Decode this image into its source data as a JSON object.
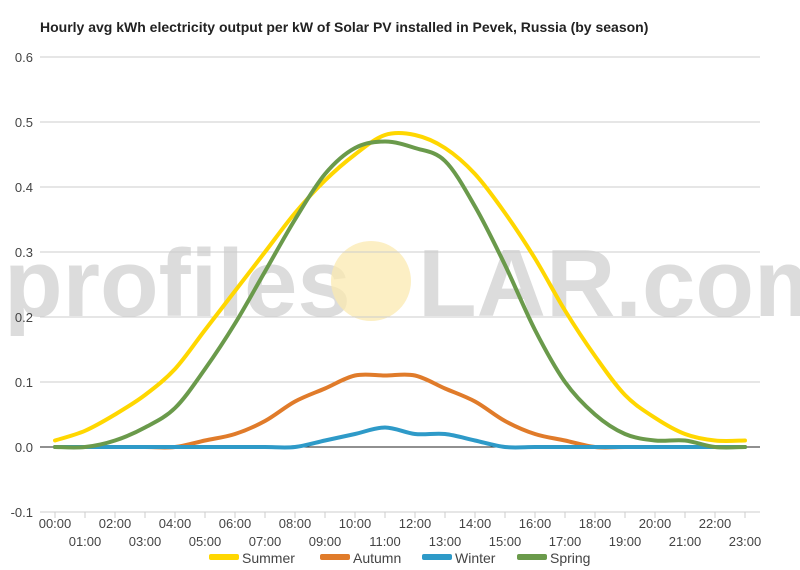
{
  "watermark": {
    "left": "profiles",
    "right": "LAR.com",
    "sun_color": "#fbe9b0"
  },
  "chart_data": {
    "type": "line",
    "title": "Hourly avg kWh electricity output per kW of Solar PV installed in Pevek, Russia (by season)",
    "xlabel": "",
    "ylabel": "",
    "ylim": [
      -0.1,
      0.6
    ],
    "yticks": [
      "-0.1",
      "0.0",
      "0.1",
      "0.2",
      "0.3",
      "0.4",
      "0.5",
      "0.6"
    ],
    "grid": true,
    "legend": "bottom",
    "x": [
      "00:00",
      "01:00",
      "02:00",
      "03:00",
      "04:00",
      "05:00",
      "06:00",
      "07:00",
      "08:00",
      "09:00",
      "10:00",
      "11:00",
      "12:00",
      "13:00",
      "14:00",
      "15:00",
      "16:00",
      "17:00",
      "18:00",
      "19:00",
      "20:00",
      "21:00",
      "22:00",
      "23:00"
    ],
    "series": [
      {
        "name": "Summer",
        "color": "#ffd700",
        "values": [
          0.01,
          0.025,
          0.05,
          0.08,
          0.12,
          0.18,
          0.24,
          0.3,
          0.36,
          0.41,
          0.45,
          0.48,
          0.48,
          0.46,
          0.42,
          0.36,
          0.29,
          0.21,
          0.14,
          0.08,
          0.045,
          0.02,
          0.01,
          0.01
        ]
      },
      {
        "name": "Autumn",
        "color": "#e07b2a",
        "values": [
          0,
          0,
          0,
          0,
          0,
          0.01,
          0.02,
          0.04,
          0.07,
          0.09,
          0.11,
          0.11,
          0.11,
          0.09,
          0.07,
          0.04,
          0.02,
          0.01,
          0,
          0,
          0,
          0,
          0,
          0
        ]
      },
      {
        "name": "Winter",
        "color": "#2e9ac8",
        "values": [
          0,
          0,
          0,
          0,
          0,
          0,
          0,
          0,
          0,
          0.01,
          0.02,
          0.03,
          0.02,
          0.02,
          0.01,
          0,
          0,
          0,
          0,
          0,
          0,
          0,
          0,
          0
        ]
      },
      {
        "name": "Spring",
        "color": "#6a9a4b",
        "values": [
          0,
          0,
          0.01,
          0.03,
          0.06,
          0.12,
          0.19,
          0.27,
          0.35,
          0.42,
          0.46,
          0.47,
          0.46,
          0.44,
          0.37,
          0.28,
          0.18,
          0.1,
          0.05,
          0.02,
          0.01,
          0.01,
          0,
          0
        ]
      }
    ]
  }
}
